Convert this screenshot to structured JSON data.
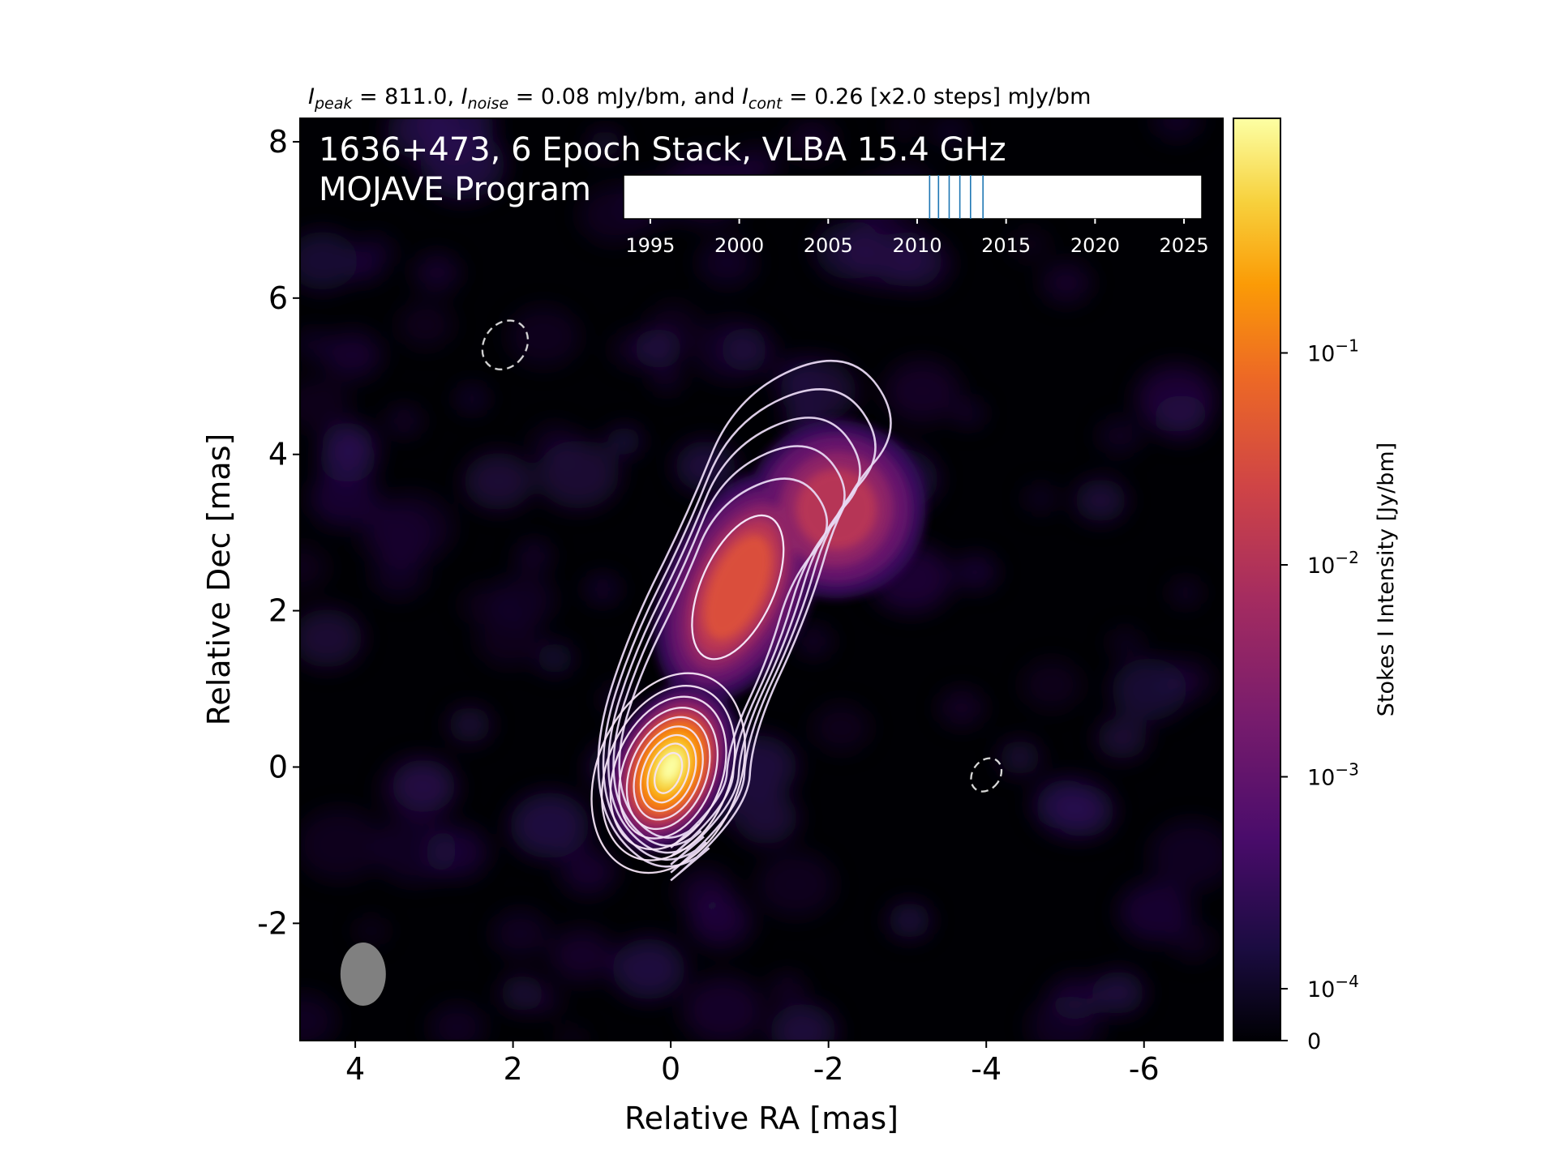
{
  "chart_data": {
    "type": "heatmap",
    "title_parts": {
      "peak_sym": "I",
      "peak_sub": "peak",
      "peak_val": " = 811.0, ",
      "noise_sym": "I",
      "noise_sub": "noise",
      "noise_val": " = 0.08 mJy/bm, and ",
      "cont_sym": "I",
      "cont_sub": "cont",
      "cont_val": " = 0.26 [x2.0 steps] mJy/bm"
    },
    "annotation_line1": "1636+473, 6 Epoch Stack, VLBA 15.4 GHz",
    "annotation_line2": "MOJAVE Program",
    "xlabel": "Relative RA [mas]",
    "ylabel": "Relative Dec [mas]",
    "xlim": [
      4.7,
      -7.0
    ],
    "ylim": [
      -3.5,
      8.3
    ],
    "x_ticks": [
      4,
      2,
      0,
      -2,
      -4,
      -6
    ],
    "x_tick_labels": [
      "4",
      "2",
      "0",
      "-2",
      "-4",
      "-6"
    ],
    "y_ticks": [
      -2,
      0,
      2,
      4,
      6,
      8
    ],
    "y_tick_labels": [
      "-2",
      "0",
      "2",
      "4",
      "6",
      "8"
    ],
    "colorbar": {
      "label": "Stokes I Intensity [Jy/bm]",
      "scale": "log",
      "ticks": [
        {
          "value": 0.1,
          "base": "10",
          "exp": "−1"
        },
        {
          "value": 0.01,
          "base": "10",
          "exp": "−2"
        },
        {
          "value": 0.001,
          "base": "10",
          "exp": "−3"
        },
        {
          "value": 0.0001,
          "base": "10",
          "exp": "−4"
        },
        {
          "value": 0,
          "base": "0",
          "exp": ""
        }
      ]
    },
    "epoch_timeline": {
      "range": [
        1993.5,
        2026
      ],
      "tick_years": [
        1995,
        2000,
        2005,
        2010,
        2015,
        2020,
        2025
      ],
      "tick_labels": [
        "1995",
        "2000",
        "2005",
        "2010",
        "2015",
        "2020",
        "2025"
      ],
      "epochs": [
        2010.7,
        2011.2,
        2011.8,
        2012.4,
        2013.0,
        2013.7
      ],
      "epoch_color": "#1f77b4"
    },
    "contour_levels_mJy": [
      0.26,
      0.52,
      1.04,
      2.08,
      4.16,
      8.32,
      16.64,
      33.28,
      66.56,
      133.12,
      266.24,
      532.48
    ],
    "negative_contours": [
      {
        "x": 2.1,
        "y": 5.4
      },
      {
        "x": -4.0,
        "y": -0.1
      }
    ],
    "beam": {
      "x": 3.9,
      "y": -2.65
    },
    "colormap": "inferno"
  }
}
